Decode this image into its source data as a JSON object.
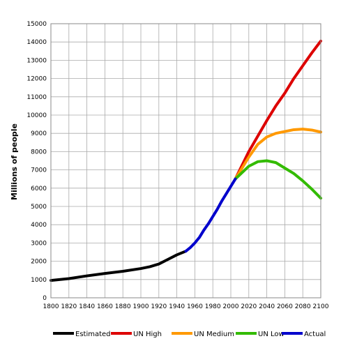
{
  "chart_data": {
    "type": "line",
    "title": "",
    "xlabel": "",
    "ylabel": "Millions of people",
    "xlim": [
      1800,
      2100
    ],
    "ylim": [
      0,
      15000
    ],
    "grid": true,
    "legend_position": "bottom",
    "x_ticks": [
      "1800",
      "1820",
      "1840",
      "1860",
      "1880",
      "1900",
      "1920",
      "1940",
      "1960",
      "1980",
      "2000",
      "2020",
      "2040",
      "2060",
      "2080",
      "2100"
    ],
    "y_ticks": [
      "0",
      "1000",
      "2000",
      "3000",
      "4000",
      "5000",
      "6000",
      "7000",
      "8000",
      "9000",
      "10000",
      "11000",
      "12000",
      "13000",
      "14000",
      "15000"
    ],
    "series": [
      {
        "name": "Estimated",
        "color": "#000000",
        "points": [
          [
            1800,
            950
          ],
          [
            1820,
            1050
          ],
          [
            1840,
            1200
          ],
          [
            1860,
            1330
          ],
          [
            1880,
            1450
          ],
          [
            1900,
            1600
          ],
          [
            1910,
            1700
          ],
          [
            1920,
            1850
          ],
          [
            1930,
            2100
          ],
          [
            1940,
            2350
          ],
          [
            1950,
            2550
          ]
        ]
      },
      {
        "name": "UN High",
        "color": "#dd0000",
        "points": [
          [
            2005,
            6500
          ],
          [
            2020,
            8000
          ],
          [
            2040,
            9700
          ],
          [
            2050,
            10500
          ],
          [
            2060,
            11200
          ],
          [
            2070,
            12000
          ],
          [
            2080,
            12700
          ],
          [
            2090,
            13400
          ],
          [
            2100,
            14050
          ]
        ]
      },
      {
        "name": "UN Medium",
        "color": "#ff9900",
        "points": [
          [
            2005,
            6500
          ],
          [
            2020,
            7700
          ],
          [
            2030,
            8400
          ],
          [
            2040,
            8800
          ],
          [
            2050,
            9000
          ],
          [
            2060,
            9100
          ],
          [
            2070,
            9200
          ],
          [
            2080,
            9230
          ],
          [
            2090,
            9180
          ],
          [
            2100,
            9070
          ]
        ]
      },
      {
        "name": "UN Low",
        "color": "#33bb00",
        "points": [
          [
            2005,
            6500
          ],
          [
            2020,
            7200
          ],
          [
            2030,
            7450
          ],
          [
            2040,
            7500
          ],
          [
            2050,
            7400
          ],
          [
            2060,
            7100
          ],
          [
            2070,
            6800
          ],
          [
            2080,
            6400
          ],
          [
            2090,
            5950
          ],
          [
            2100,
            5450
          ]
        ]
      },
      {
        "name": "Actual",
        "color": "#0000cc",
        "points": [
          [
            1950,
            2550
          ],
          [
            1955,
            2750
          ],
          [
            1960,
            3000
          ],
          [
            1965,
            3300
          ],
          [
            1970,
            3700
          ],
          [
            1975,
            4050
          ],
          [
            1980,
            4450
          ],
          [
            1985,
            4850
          ],
          [
            1990,
            5300
          ],
          [
            1995,
            5700
          ],
          [
            2000,
            6100
          ],
          [
            2005,
            6500
          ]
        ]
      }
    ]
  }
}
